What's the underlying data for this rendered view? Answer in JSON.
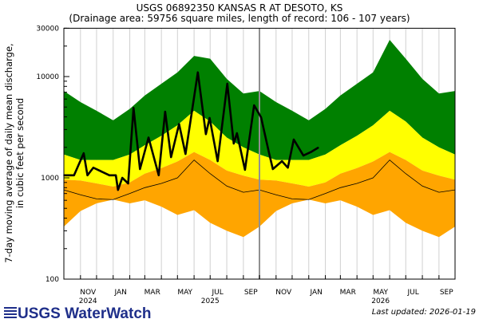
{
  "chart_data": {
    "type": "area",
    "title": "USGS 06892350 KANSAS R AT DESOTO, KS",
    "subtitle": "(Drainage area: 59756 square miles, length of record: 106 - 107 years)",
    "ylabel_line1": "7-day moving average of daily mean discharge,",
    "ylabel_line2": "in cubic feet per second",
    "yscale": "log",
    "ylim": [
      100,
      30000
    ],
    "yticks": [
      "100",
      "1000",
      "10000",
      "30000"
    ],
    "xlim": [
      "2024-10-01",
      "2026-10-01"
    ],
    "xtick_labels": [
      "NOV",
      "JAN",
      "MAR",
      "MAY",
      "JUL",
      "SEP",
      "NOV",
      "JAN",
      "MAR",
      "MAY",
      "JUL",
      "SEP"
    ],
    "year_labels": [
      "2024",
      "2025",
      "2026"
    ],
    "grid": "vertical monthly",
    "colors": {
      "band_high": "#008000",
      "band_mid": "#ffff00",
      "band_low": "#ffa500",
      "current": "#000000",
      "median": "#000000",
      "marker": "#909090"
    },
    "bands": {
      "dates": [
        "2024-10-01",
        "2024-11-01",
        "2024-12-01",
        "2025-01-01",
        "2025-02-01",
        "2025-03-01",
        "2025-04-01",
        "2025-05-01",
        "2025-06-01",
        "2025-07-01",
        "2025-08-01",
        "2025-09-01",
        "2025-10-01",
        "2025-11-01",
        "2025-12-01",
        "2026-01-01",
        "2026-02-01",
        "2026-03-01",
        "2026-04-01",
        "2026-05-01",
        "2026-06-01",
        "2026-07-01",
        "2026-08-01",
        "2026-09-01",
        "2026-10-01"
      ],
      "max": [
        7200,
        5600,
        4600,
        3700,
        4800,
        6500,
        8500,
        11000,
        16000,
        15000,
        9500,
        6800,
        7200,
        5600,
        4600,
        3700,
        4800,
        6500,
        8500,
        11000,
        23000,
        15000,
        9500,
        6800,
        7200
      ],
      "upper": [
        1700,
        1500,
        1500,
        1500,
        1700,
        2100,
        2600,
        3300,
        4600,
        3600,
        2500,
        2000,
        1700,
        1500,
        1500,
        1500,
        1700,
        2100,
        2600,
        3300,
        4600,
        3600,
        2500,
        2000,
        1700
      ],
      "lower": [
        960,
        940,
        880,
        820,
        900,
        1100,
        1250,
        1450,
        1800,
        1500,
        1180,
        1050,
        960,
        940,
        880,
        820,
        900,
        1100,
        1250,
        1450,
        1800,
        1500,
        1180,
        1050,
        960
      ],
      "min": [
        330,
        470,
        560,
        610,
        560,
        600,
        520,
        430,
        480,
        360,
        300,
        260,
        330,
        470,
        560,
        610,
        560,
        600,
        520,
        430,
        480,
        360,
        300,
        260,
        330
      ],
      "median": [
        760,
        680,
        620,
        610,
        700,
        800,
        880,
        1000,
        1500,
        1100,
        830,
        720,
        760,
        680,
        620,
        610,
        700,
        800,
        880,
        1000,
        1500,
        1100,
        830,
        720,
        760
      ]
    },
    "current": {
      "dates": [
        "2024-10-01",
        "2024-10-20",
        "2024-11-07",
        "2024-11-14",
        "2024-11-25",
        "2024-12-25",
        "2025-01-06",
        "2025-01-10",
        "2025-01-18",
        "2025-01-29",
        "2025-02-08",
        "2025-02-20",
        "2025-03-08",
        "2025-03-27",
        "2025-04-08",
        "2025-04-19",
        "2025-05-04",
        "2025-05-16",
        "2025-06-08",
        "2025-06-23",
        "2025-06-30",
        "2025-07-15",
        "2025-08-02",
        "2025-08-14",
        "2025-08-20",
        "2025-09-04",
        "2025-09-21",
        "2025-10-04",
        "2025-10-19",
        "2025-10-26",
        "2025-11-12",
        "2025-11-23",
        "2025-12-04",
        "2025-12-22",
        "2026-01-06",
        "2026-01-19"
      ],
      "values": [
        1060,
        1060,
        1750,
        1060,
        1260,
        1060,
        1060,
        760,
        1000,
        880,
        4900,
        1220,
        2500,
        1060,
        4500,
        1600,
        3400,
        1720,
        11000,
        2700,
        3900,
        1460,
        8500,
        2180,
        2760,
        1200,
        5200,
        3960,
        1750,
        1220,
        1460,
        1260,
        2390,
        1660,
        1810,
        1990
      ]
    }
  },
  "footer": {
    "logo_text": "USGS WaterWatch",
    "last_updated": "Last updated: 2026-01-19"
  }
}
